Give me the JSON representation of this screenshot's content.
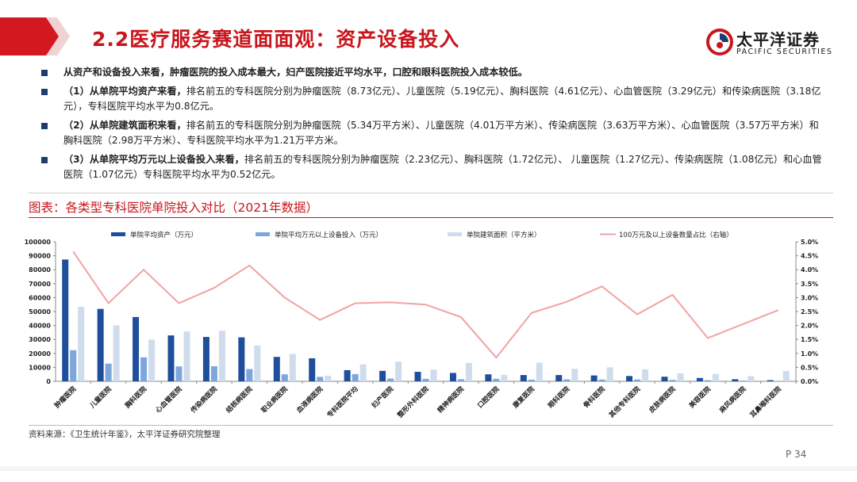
{
  "header": {
    "title": "2.2医疗服务赛道面面观：资产设备投入",
    "logo_cn": "太平洋证券",
    "logo_en": "PACIFIC SECURITIES"
  },
  "bullets": [
    {
      "lead": "",
      "text": "从资产和设备投入来看，肿瘤医院的投入成本最大，妇产医院接近平均水平，口腔和眼科医院投入成本较低。"
    },
    {
      "lead": "（1）从单院平均资产来看，",
      "text": "排名前五的专科医院分别为肿瘤医院（8.73亿元）、儿童医院（5.19亿元）、胸科医院（4.61亿元）、心血管医院（3.29亿元）和传染病医院（3.18亿元），专科医院平均水平为0.8亿元。"
    },
    {
      "lead": "（2）从单院建筑面积来看，",
      "text": "排名前五的专科医院分别为肿瘤医院（5.34万平方米）、儿童医院（4.01万平方米）、传染病医院（3.63万平方米）、心血管医院（3.57万平方米）和胸科医院（2.98万平方米）、专科医院平均水平为1.21万平方米。"
    },
    {
      "lead": "（3）从单院平均万元以上设备投入来看，",
      "text": "排名前五的专科医院分别为肿瘤医院（2.23亿元）、胸科医院（1.72亿元）、 儿童医院（1.27亿元）、传染病医院（1.08亿元）和心血管医院（1.07亿元）专科医院平均水平为0.52亿元。"
    }
  ],
  "chart_title": "图表：各类型专科医院单院投入对比（2021年数据）",
  "source": "资料来源：《卫生统计年鉴》，太平洋证券研究院整理",
  "page_number": "P 34",
  "colors": {
    "asset": "#1f4e9c",
    "equipment": "#7fa6dc",
    "area": "#cfdcec",
    "ratio": "#f0a3a3",
    "title_red": "#c8161d"
  },
  "chart_data": {
    "type": "bar",
    "categories": [
      "肿瘤医院",
      "儿童医院",
      "胸科医院",
      "心血管医院",
      "传染病医院",
      "结核病医院",
      "职业病医院",
      "血液病医院",
      "专科医院平均",
      "妇产医院",
      "整形外科医院",
      "精神病医院",
      "口腔医院",
      "康复医院",
      "眼科医院",
      "骨科医院",
      "其他专科医院",
      "皮肤病医院",
      "美容医院",
      "麻风病医院",
      "耳鼻喉科医院"
    ],
    "series": [
      {
        "name": "单院平均资产（万元）",
        "axis": "left",
        "kind": "bar",
        "values": [
          87300,
          51900,
          46100,
          32900,
          31800,
          31500,
          17500,
          16500,
          8000,
          7500,
          6800,
          6000,
          5000,
          4500,
          4500,
          4200,
          3800,
          3300,
          2400,
          1500,
          800
        ]
      },
      {
        "name": "单院平均万元以上设备投入（万元）",
        "axis": "left",
        "kind": "bar",
        "values": [
          22300,
          12700,
          17200,
          10700,
          10800,
          8800,
          5000,
          3200,
          5200,
          2000,
          1800,
          1500,
          1800,
          1200,
          1400,
          1300,
          1300,
          1000,
          800,
          500,
          300
        ]
      },
      {
        "name": "单院建筑面积（平方米）",
        "axis": "left",
        "kind": "bar",
        "values": [
          53400,
          40100,
          29800,
          35700,
          36300,
          25700,
          19600,
          4000,
          12100,
          14100,
          8400,
          13200,
          4600,
          13300,
          9000,
          10000,
          8600,
          5700,
          5300,
          3800,
          7300
        ]
      },
      {
        "name": "100万元及以上设备数量占比（右轴）",
        "axis": "right",
        "kind": "line",
        "values": [
          4.65,
          2.8,
          4.0,
          2.8,
          3.35,
          4.15,
          3.0,
          2.2,
          2.8,
          2.83,
          2.75,
          2.3,
          0.85,
          2.45,
          2.85,
          3.4,
          2.4,
          3.1,
          1.55,
          2.05,
          2.55
        ]
      }
    ],
    "y_left": {
      "min": 0,
      "max": 100000,
      "step": 10000,
      "ticks": [
        "0",
        "10000",
        "20000",
        "30000",
        "40000",
        "50000",
        "60000",
        "70000",
        "80000",
        "90000",
        "100000"
      ]
    },
    "y_right": {
      "min": 0,
      "max": 5,
      "step": 0.5,
      "ticks": [
        "0.0%",
        "0.5%",
        "1.0%",
        "1.5%",
        "2.0%",
        "2.5%",
        "3.0%",
        "3.5%",
        "4.0%",
        "4.5%",
        "5.0%"
      ]
    },
    "legend_position": "top",
    "grid": false
  }
}
